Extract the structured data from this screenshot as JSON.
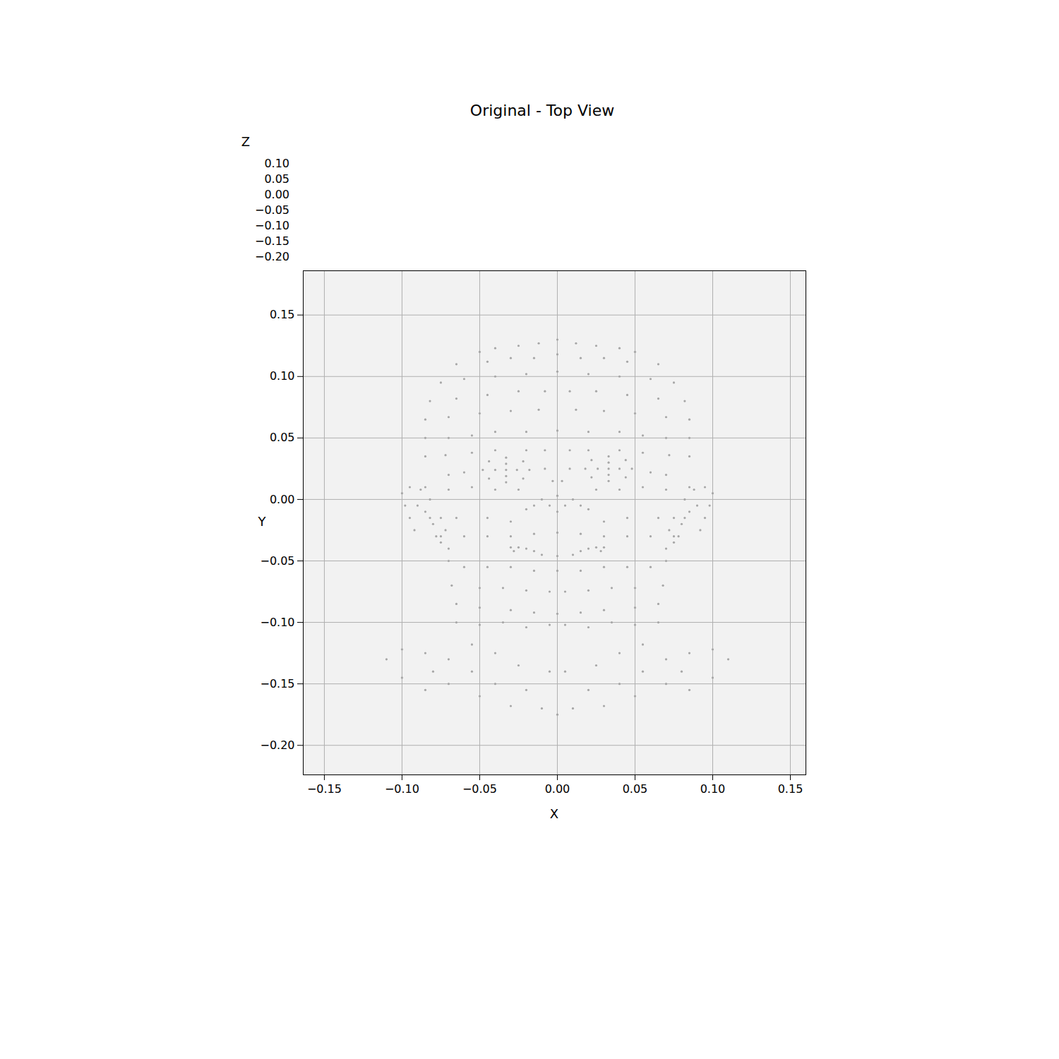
{
  "chart_data": {
    "type": "scatter",
    "title": "Original - Top View",
    "x_label": "X",
    "y_label": "Y",
    "z_label": "Z",
    "color": "#a6a6a6",
    "grid": true,
    "xlim": [
      -0.1636,
      0.16
    ],
    "ylim": [
      -0.224,
      0.186
    ],
    "xticks": [
      {
        "value": -0.15,
        "label": "−0.15"
      },
      {
        "value": -0.1,
        "label": "−0.10"
      },
      {
        "value": -0.05,
        "label": "−0.05"
      },
      {
        "value": 0,
        "label": "0.00"
      },
      {
        "value": 0.05,
        "label": "0.05"
      },
      {
        "value": 0.1,
        "label": "0.10"
      },
      {
        "value": 0.15,
        "label": "0.15"
      }
    ],
    "yticks": [
      {
        "value": -0.2,
        "label": "−0.20"
      },
      {
        "value": -0.15,
        "label": "−0.15"
      },
      {
        "value": -0.1,
        "label": "−0.10"
      },
      {
        "value": -0.05,
        "label": "−0.05"
      },
      {
        "value": 0,
        "label": "0.00"
      },
      {
        "value": 0.05,
        "label": "0.05"
      },
      {
        "value": 0.1,
        "label": "0.10"
      },
      {
        "value": 0.15,
        "label": "0.15"
      }
    ],
    "zticks": [
      {
        "value": 0.1,
        "label": "0.10"
      },
      {
        "value": 0.05,
        "label": "0.05"
      },
      {
        "value": 0,
        "label": "0.00"
      },
      {
        "value": -0.05,
        "label": "−0.05"
      },
      {
        "value": -0.1,
        "label": "−0.10"
      },
      {
        "value": -0.15,
        "label": "−0.15"
      },
      {
        "value": -0.2,
        "label": "−0.20"
      }
    ],
    "points": [
      [
        -0.05,
        0.12
      ],
      [
        -0.04,
        0.123
      ],
      [
        -0.025,
        0.125
      ],
      [
        -0.012,
        0.127
      ],
      [
        0,
        0.13
      ],
      [
        0.012,
        0.127
      ],
      [
        0.025,
        0.125
      ],
      [
        0.04,
        0.123
      ],
      [
        0.05,
        0.12
      ],
      [
        -0.065,
        0.11
      ],
      [
        -0.045,
        0.112
      ],
      [
        -0.03,
        0.115
      ],
      [
        -0.015,
        0.115
      ],
      [
        0,
        0.118
      ],
      [
        0.015,
        0.115
      ],
      [
        0.03,
        0.115
      ],
      [
        0.045,
        0.112
      ],
      [
        0.065,
        0.11
      ],
      [
        -0.075,
        0.095
      ],
      [
        -0.06,
        0.098
      ],
      [
        -0.04,
        0.1
      ],
      [
        -0.02,
        0.102
      ],
      [
        0,
        0.104
      ],
      [
        0.02,
        0.102
      ],
      [
        0.04,
        0.1
      ],
      [
        0.06,
        0.098
      ],
      [
        0.075,
        0.095
      ],
      [
        -0.082,
        0.08
      ],
      [
        -0.065,
        0.082
      ],
      [
        -0.045,
        0.085
      ],
      [
        -0.025,
        0.088
      ],
      [
        -0.008,
        0.088
      ],
      [
        0.008,
        0.088
      ],
      [
        0.025,
        0.088
      ],
      [
        0.045,
        0.085
      ],
      [
        0.065,
        0.082
      ],
      [
        0.082,
        0.08
      ],
      [
        -0.085,
        0.065
      ],
      [
        -0.07,
        0.067
      ],
      [
        -0.05,
        0.07
      ],
      [
        -0.03,
        0.072
      ],
      [
        -0.012,
        0.073
      ],
      [
        0.012,
        0.073
      ],
      [
        0.03,
        0.072
      ],
      [
        0.05,
        0.07
      ],
      [
        0.07,
        0.067
      ],
      [
        0.085,
        0.065
      ],
      [
        -0.085,
        0.05
      ],
      [
        -0.07,
        0.05
      ],
      [
        -0.055,
        0.052
      ],
      [
        -0.04,
        0.055
      ],
      [
        -0.02,
        0.055
      ],
      [
        0,
        0.056
      ],
      [
        0.02,
        0.055
      ],
      [
        0.04,
        0.055
      ],
      [
        0.055,
        0.052
      ],
      [
        0.07,
        0.05
      ],
      [
        0.085,
        0.05
      ],
      [
        -0.085,
        0.035
      ],
      [
        -0.072,
        0.036
      ],
      [
        -0.055,
        0.038
      ],
      [
        -0.04,
        0.04
      ],
      [
        -0.02,
        0.04
      ],
      [
        -0.008,
        0.04
      ],
      [
        0.008,
        0.04
      ],
      [
        0.02,
        0.04
      ],
      [
        0.04,
        0.04
      ],
      [
        0.055,
        0.038
      ],
      [
        0.072,
        0.036
      ],
      [
        0.085,
        0.035
      ],
      [
        -0.033,
        0.024
      ],
      [
        -0.048,
        0.024
      ],
      [
        -0.018,
        0.024
      ],
      [
        -0.033,
        0.034
      ],
      [
        -0.033,
        0.014
      ],
      [
        -0.044,
        0.031
      ],
      [
        -0.022,
        0.031
      ],
      [
        -0.044,
        0.017
      ],
      [
        -0.022,
        0.017
      ],
      [
        -0.04,
        0.024
      ],
      [
        -0.026,
        0.024
      ],
      [
        -0.033,
        0.029
      ],
      [
        -0.033,
        0.019
      ],
      [
        0.033,
        0.025
      ],
      [
        0.048,
        0.025
      ],
      [
        0.018,
        0.025
      ],
      [
        0.033,
        0.035
      ],
      [
        0.033,
        0.015
      ],
      [
        0.044,
        0.032
      ],
      [
        0.022,
        0.032
      ],
      [
        0.044,
        0.018
      ],
      [
        0.022,
        0.018
      ],
      [
        0.04,
        0.025
      ],
      [
        0.026,
        0.025
      ],
      [
        0.033,
        0.03
      ],
      [
        0.033,
        0.02
      ],
      [
        -0.06,
        0.022
      ],
      [
        -0.07,
        0.02
      ],
      [
        0.06,
        0.022
      ],
      [
        0.07,
        0.02
      ],
      [
        -0.008,
        0.025
      ],
      [
        0.008,
        0.025
      ],
      [
        -0.003,
        0.015
      ],
      [
        0.003,
        0.015
      ],
      [
        -0.085,
        0.01
      ],
      [
        -0.07,
        0.008
      ],
      [
        -0.055,
        0.01
      ],
      [
        -0.04,
        0.008
      ],
      [
        -0.025,
        0.008
      ],
      [
        0.025,
        0.008
      ],
      [
        0.04,
        0.008
      ],
      [
        0.055,
        0.01
      ],
      [
        0.07,
        0.008
      ],
      [
        0.085,
        0.01
      ],
      [
        -0.01,
        0
      ],
      [
        -0.015,
        -0.005
      ],
      [
        -0.005,
        -0.005
      ],
      [
        0,
        0.003
      ],
      [
        0.005,
        -0.005
      ],
      [
        0.015,
        -0.005
      ],
      [
        0.01,
        0
      ],
      [
        -0.02,
        -0.008
      ],
      [
        0.02,
        -0.008
      ],
      [
        0,
        -0.01
      ],
      [
        -0.082,
        -0.015
      ],
      [
        -0.065,
        -0.015
      ],
      [
        -0.045,
        -0.015
      ],
      [
        -0.03,
        -0.018
      ],
      [
        0.03,
        -0.018
      ],
      [
        0.045,
        -0.015
      ],
      [
        0.065,
        -0.015
      ],
      [
        0.082,
        -0.015
      ],
      [
        -0.075,
        -0.03
      ],
      [
        -0.06,
        -0.03
      ],
      [
        -0.045,
        -0.03
      ],
      [
        -0.03,
        -0.03
      ],
      [
        -0.015,
        -0.028
      ],
      [
        0,
        -0.027
      ],
      [
        0.015,
        -0.028
      ],
      [
        0.03,
        -0.03
      ],
      [
        0.045,
        -0.03
      ],
      [
        0.06,
        -0.03
      ],
      [
        0.075,
        -0.03
      ],
      [
        -0.03,
        -0.039
      ],
      [
        -0.025,
        -0.039
      ],
      [
        -0.02,
        -0.04
      ],
      [
        -0.028,
        -0.042
      ],
      [
        -0.015,
        -0.042
      ],
      [
        0.015,
        -0.042
      ],
      [
        0.02,
        -0.04
      ],
      [
        0.025,
        -0.039
      ],
      [
        0.03,
        -0.039
      ],
      [
        0.028,
        -0.042
      ],
      [
        -0.01,
        -0.045
      ],
      [
        0,
        -0.046
      ],
      [
        0.01,
        -0.045
      ],
      [
        -0.07,
        -0.05
      ],
      [
        -0.06,
        -0.055
      ],
      [
        -0.045,
        -0.055
      ],
      [
        -0.03,
        -0.055
      ],
      [
        -0.015,
        -0.058
      ],
      [
        0,
        -0.058
      ],
      [
        0.015,
        -0.058
      ],
      [
        0.03,
        -0.055
      ],
      [
        0.045,
        -0.055
      ],
      [
        0.06,
        -0.055
      ],
      [
        0.07,
        -0.05
      ],
      [
        -0.068,
        -0.07
      ],
      [
        -0.05,
        -0.072
      ],
      [
        -0.035,
        -0.072
      ],
      [
        -0.02,
        -0.074
      ],
      [
        -0.005,
        -0.075
      ],
      [
        0.005,
        -0.075
      ],
      [
        0.02,
        -0.074
      ],
      [
        0.035,
        -0.072
      ],
      [
        0.05,
        -0.072
      ],
      [
        0.068,
        -0.07
      ],
      [
        -0.065,
        -0.085
      ],
      [
        -0.05,
        -0.088
      ],
      [
        -0.03,
        -0.09
      ],
      [
        -0.015,
        -0.092
      ],
      [
        0,
        -0.093
      ],
      [
        0.015,
        -0.092
      ],
      [
        0.03,
        -0.09
      ],
      [
        0.05,
        -0.088
      ],
      [
        0.065,
        -0.085
      ],
      [
        -0.065,
        -0.1
      ],
      [
        -0.05,
        -0.102
      ],
      [
        -0.035,
        -0.1
      ],
      [
        -0.02,
        -0.104
      ],
      [
        -0.005,
        -0.102
      ],
      [
        0.005,
        -0.102
      ],
      [
        0.02,
        -0.104
      ],
      [
        0.035,
        -0.1
      ],
      [
        0.05,
        -0.102
      ],
      [
        0.065,
        -0.1
      ],
      [
        -0.11,
        -0.13
      ],
      [
        -0.1,
        -0.122
      ],
      [
        -0.1,
        -0.145
      ],
      [
        -0.085,
        -0.125
      ],
      [
        -0.085,
        -0.155
      ],
      [
        -0.08,
        -0.14
      ],
      [
        -0.07,
        -0.13
      ],
      [
        -0.07,
        -0.15
      ],
      [
        -0.055,
        -0.118
      ],
      [
        -0.055,
        -0.14
      ],
      [
        -0.05,
        -0.16
      ],
      [
        -0.04,
        -0.125
      ],
      [
        -0.04,
        -0.15
      ],
      [
        -0.03,
        -0.168
      ],
      [
        -0.025,
        -0.135
      ],
      [
        -0.02,
        -0.155
      ],
      [
        -0.01,
        -0.17
      ],
      [
        -0.005,
        -0.14
      ],
      [
        0,
        -0.175
      ],
      [
        0.005,
        -0.14
      ],
      [
        0.01,
        -0.17
      ],
      [
        0.02,
        -0.155
      ],
      [
        0.025,
        -0.135
      ],
      [
        0.03,
        -0.168
      ],
      [
        0.04,
        -0.125
      ],
      [
        0.04,
        -0.15
      ],
      [
        0.05,
        -0.16
      ],
      [
        0.055,
        -0.118
      ],
      [
        0.055,
        -0.14
      ],
      [
        0.07,
        -0.13
      ],
      [
        0.07,
        -0.15
      ],
      [
        0.08,
        -0.14
      ],
      [
        0.085,
        -0.125
      ],
      [
        0.085,
        -0.155
      ],
      [
        0.1,
        -0.122
      ],
      [
        0.1,
        -0.145
      ],
      [
        0.11,
        -0.13
      ],
      [
        -0.1,
        0.005
      ],
      [
        -0.095,
        0.01
      ],
      [
        -0.088,
        0.008
      ],
      [
        -0.098,
        -0.005
      ],
      [
        -0.09,
        -0.005
      ],
      [
        -0.085,
        -0.01
      ],
      [
        -0.095,
        -0.015
      ],
      [
        -0.08,
        -0.02
      ],
      [
        -0.075,
        -0.015
      ],
      [
        -0.078,
        -0.03
      ],
      [
        -0.072,
        -0.025
      ],
      [
        -0.075,
        -0.035
      ],
      [
        -0.07,
        -0.04
      ],
      [
        -0.082,
        0
      ],
      [
        -0.092,
        -0.025
      ],
      [
        0.1,
        0.005
      ],
      [
        0.095,
        0.01
      ],
      [
        0.088,
        0.008
      ],
      [
        0.098,
        -0.005
      ],
      [
        0.09,
        -0.005
      ],
      [
        0.085,
        -0.01
      ],
      [
        0.095,
        -0.015
      ],
      [
        0.08,
        -0.02
      ],
      [
        0.075,
        -0.015
      ],
      [
        0.078,
        -0.03
      ],
      [
        0.072,
        -0.025
      ],
      [
        0.075,
        -0.035
      ],
      [
        0.07,
        -0.04
      ],
      [
        0.082,
        0
      ],
      [
        0.092,
        -0.025
      ]
    ]
  }
}
